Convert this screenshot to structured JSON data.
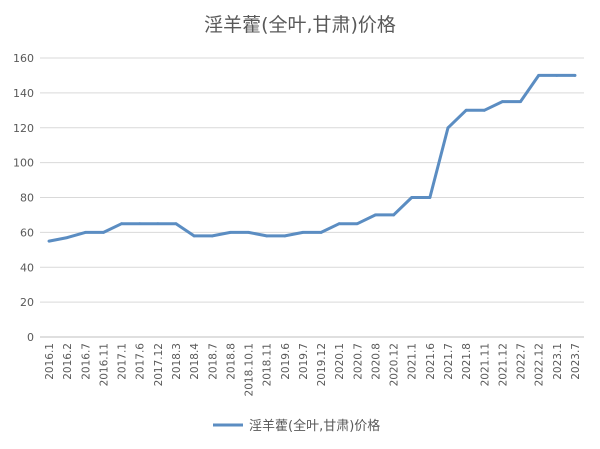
{
  "chart_data": {
    "type": "line",
    "title": "淫羊藿(全叶,甘肃)价格",
    "categories": [
      "2016.1",
      "2016.2",
      "2016.7",
      "2016.11",
      "2017.1",
      "2017.6",
      "2017.12",
      "2018.3",
      "2018.4",
      "2018.7",
      "2018.8",
      "2018.10.1",
      "2018.11",
      "2019.6",
      "2019.7",
      "2019.12",
      "2020.1",
      "2020.7",
      "2020.8",
      "2020.12",
      "2021.1",
      "2021.6",
      "2021.7",
      "2021.8",
      "2021.11",
      "2021.12",
      "2022.7",
      "2022.12",
      "2023.1",
      "2023.7"
    ],
    "series": [
      {
        "name": "淫羊藿(全叶,甘肃)价格",
        "color": "#5B8DC2",
        "values": [
          55,
          57,
          60,
          60,
          65,
          65,
          65,
          65,
          58,
          58,
          60,
          60,
          58,
          58,
          60,
          60,
          65,
          65,
          70,
          70,
          80,
          80,
          120,
          130,
          130,
          135,
          135,
          150,
          150,
          150
        ]
      }
    ],
    "yticks": [
      0,
      20,
      40,
      60,
      80,
      100,
      120,
      140,
      160
    ],
    "ylim": [
      0,
      160
    ],
    "grid": true,
    "legend_position": "bottom"
  }
}
